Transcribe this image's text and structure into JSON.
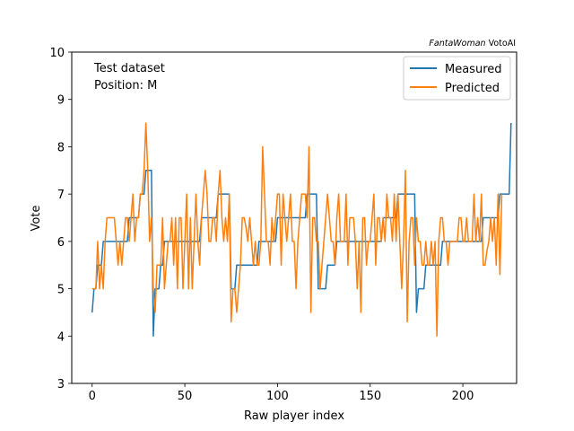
{
  "chart_data": {
    "type": "line",
    "title": "",
    "credit": {
      "italic": "FantaWoman",
      "plain": " VotoAI"
    },
    "annotations": [
      "Test dataset",
      "Position: M"
    ],
    "xlabel": "Raw player index",
    "ylabel": "Vote",
    "xlim": [
      -11,
      229
    ],
    "ylim": [
      3,
      10
    ],
    "xticks": [
      0,
      50,
      100,
      150,
      200
    ],
    "yticks": [
      3,
      4,
      5,
      6,
      7,
      8,
      9,
      10
    ],
    "grid": false,
    "legend_position": "top-right",
    "series": [
      {
        "name": "Measured",
        "color": "#1f77b4",
        "values": [
          4.5,
          5,
          5,
          5.5,
          5.5,
          5.5,
          6,
          6,
          6,
          6,
          6,
          6,
          6,
          6,
          6,
          6,
          6,
          6,
          6,
          6,
          6.5,
          6.5,
          6.5,
          6.5,
          6.5,
          6.5,
          7,
          7,
          7,
          7.5,
          7.5,
          7.5,
          7.5,
          4,
          5,
          5,
          5,
          5.5,
          5.5,
          6,
          6,
          6,
          6,
          6,
          6,
          6,
          6,
          6,
          6,
          6,
          6,
          6,
          6,
          6,
          6,
          6,
          6,
          6,
          6,
          6.5,
          6.5,
          6.5,
          6.5,
          6.5,
          6.5,
          6.5,
          6.5,
          6.5,
          7,
          7,
          7,
          7,
          7,
          7,
          7,
          5,
          5,
          5,
          5.5,
          5.5,
          5.5,
          5.5,
          5.5,
          5.5,
          5.5,
          5.5,
          5.5,
          5.5,
          5.5,
          5.5,
          6,
          6,
          6,
          6,
          6,
          6,
          6,
          6,
          6,
          6,
          6.5,
          6.5,
          6.5,
          6.5,
          6.5,
          6.5,
          6.5,
          6.5,
          6.5,
          6.5,
          6.5,
          6.5,
          6.5,
          6.5,
          6.5,
          6.5,
          7,
          7,
          7,
          7,
          7,
          7,
          5,
          5,
          5,
          5,
          5,
          5.5,
          5.5,
          5.5,
          5.5,
          5.5,
          6,
          6,
          6,
          6,
          6,
          6,
          6,
          6,
          6,
          6,
          6,
          6,
          6,
          6,
          6,
          6,
          6,
          6,
          6,
          6,
          6,
          6,
          6,
          6,
          6,
          6.5,
          6.5,
          6.5,
          6.5,
          6.5,
          6.5,
          6.5,
          6.5,
          7,
          7,
          7,
          7,
          7,
          7,
          7,
          7,
          7,
          7,
          4.5,
          5,
          5,
          5,
          5,
          5.5,
          5.5,
          5.5,
          5.5,
          5.5,
          5.5,
          5.5,
          5.5,
          5.5,
          6,
          6,
          6,
          6,
          6,
          6,
          6,
          6,
          6,
          6,
          6,
          6,
          6,
          6,
          6,
          6,
          6,
          6,
          6,
          6,
          6,
          6,
          6.5,
          6.5,
          6.5,
          6.5,
          6.5,
          6.5,
          6.5,
          6.5,
          6.5,
          7,
          7,
          7,
          7,
          7,
          7,
          8.5
        ],
        "x_start": 0
      },
      {
        "name": "Predicted",
        "color": "#ff7f0e",
        "values": [
          5,
          5,
          5,
          6,
          5,
          5.5,
          5,
          6,
          6.5,
          6.5,
          6.5,
          6.5,
          6.5,
          6,
          5.5,
          6,
          5.5,
          6,
          6.5,
          6.5,
          6,
          6.5,
          7,
          6,
          6.5,
          6.5,
          7,
          7,
          7.5,
          8.5,
          7.5,
          6,
          6.5,
          5,
          4.5,
          5.5,
          5.5,
          5.5,
          6.5,
          5,
          5.5,
          6,
          6,
          6.5,
          5.5,
          6.5,
          5,
          6.5,
          6.5,
          5,
          6,
          7,
          5,
          6.5,
          5,
          6,
          7,
          6,
          5.5,
          6.5,
          7,
          7.5,
          7,
          6,
          6,
          6.5,
          6.5,
          6,
          7,
          7.5,
          6.5,
          6,
          6.5,
          6,
          7,
          4.3,
          5,
          5,
          4.5,
          5,
          5.5,
          6.5,
          6.5,
          6.3,
          6,
          6.5,
          6,
          5.5,
          6,
          5.5,
          5.5,
          6,
          8,
          7,
          6,
          6,
          5.5,
          6.5,
          6,
          6.5,
          7,
          7,
          5.5,
          7,
          6.5,
          6,
          6.5,
          7,
          6,
          6,
          5,
          6,
          6.5,
          7,
          7,
          7,
          6.5,
          8,
          4.5,
          6.5,
          6.5,
          6,
          6,
          5,
          5.5,
          6,
          6.5,
          7,
          6.5,
          6,
          6,
          5.5,
          6.5,
          7,
          6,
          6,
          6,
          7,
          5.5,
          6.5,
          6.5,
          6.5,
          6,
          5,
          6,
          4.5,
          6.5,
          6.5,
          5.5,
          6,
          6,
          6.5,
          7,
          5.5,
          6.5,
          6.5,
          6,
          6.5,
          6,
          7,
          6.5,
          6.5,
          6,
          7,
          6,
          7,
          6,
          5,
          6,
          7.5,
          4.3,
          6,
          6.5,
          6.5,
          5.5,
          6.5,
          6,
          6,
          5.5,
          5.5,
          6,
          5.5,
          5.5,
          6,
          5.5,
          6,
          4,
          6,
          6.5,
          6.5,
          6,
          6,
          5.5,
          6,
          6,
          6,
          6,
          6,
          6.5,
          6.5,
          6,
          6,
          6.5,
          6,
          6,
          6,
          7,
          6,
          6.5,
          6,
          7,
          5.5,
          5.5,
          5.8,
          6,
          6.5,
          6,
          6.5,
          5.5,
          7,
          5.3,
          7
        ],
        "x_start": 0
      }
    ]
  }
}
